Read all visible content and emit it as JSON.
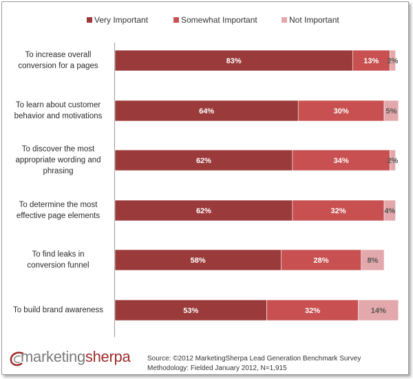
{
  "chart_data": {
    "type": "bar",
    "orientation": "horizontal",
    "stacked": true,
    "categories": [
      "To increase overall conversion for a pages",
      "To learn about customer behavior and motivations",
      "To discover the most appropriate wording and phrasing",
      "To determine the most effective page elements",
      "To find leaks in conversion funnel",
      "To build brand awareness"
    ],
    "series": [
      {
        "name": "Very Important",
        "color": "#9b3a3a",
        "values": [
          83,
          64,
          62,
          62,
          58,
          53
        ],
        "labels": [
          "83%",
          "64%",
          "62%",
          "62%",
          "58%",
          "53%"
        ]
      },
      {
        "name": "Somewhat Important",
        "color": "#c85050",
        "values": [
          13,
          30,
          34,
          32,
          28,
          32
        ],
        "labels": [
          "13%",
          "30%",
          "34%",
          "32%",
          "28%",
          "32%"
        ]
      },
      {
        "name": "Not Important",
        "color": "#e3a8ab",
        "values": [
          2,
          5,
          2,
          4,
          8,
          14
        ],
        "labels": [
          "2%",
          "5%",
          "2%",
          "4%",
          "8%",
          "14%"
        ]
      }
    ],
    "xlim": [
      0,
      100
    ],
    "grid": false,
    "legend_position": "top"
  },
  "logo": {
    "part1": "marketing",
    "part2": "sherpa"
  },
  "source": {
    "line1": "Source: ©2012 MarketingSherpa Lead Generation Benchmark Survey",
    "line2": "Methodology: Fielded January 2012, N=1,915"
  }
}
